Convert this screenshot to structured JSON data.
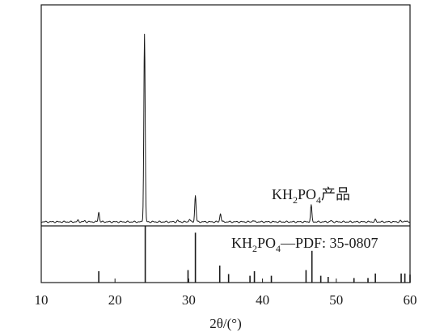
{
  "chart_data": {
    "type": "line",
    "xlabel": "2θ/(°)",
    "ylabel": "",
    "xlim": [
      10,
      60
    ],
    "xticks": [
      10,
      20,
      30,
      40,
      50,
      60
    ],
    "yticks": [],
    "grid": false,
    "panels": [
      {
        "name": "KH2PO4产品",
        "kind": "pattern",
        "label_parts": [
          "KH",
          "2",
          "PO",
          "4",
          "产品"
        ],
        "baseline": 0,
        "peaks": [
          {
            "x": 15.0,
            "y": 0.8
          },
          {
            "x": 15.9,
            "y": 0.5
          },
          {
            "x": 17.8,
            "y": 5.2
          },
          {
            "x": 24.0,
            "y": 100
          },
          {
            "x": 28.5,
            "y": 0.7
          },
          {
            "x": 30.1,
            "y": 1.5
          },
          {
            "x": 30.9,
            "y": 14.0
          },
          {
            "x": 34.3,
            "y": 4.5
          },
          {
            "x": 38.7,
            "y": 0.8
          },
          {
            "x": 46.6,
            "y": 8.8
          },
          {
            "x": 49.3,
            "y": 0.6
          },
          {
            "x": 55.3,
            "y": 1.1
          },
          {
            "x": 58.7,
            "y": 0.5
          },
          {
            "x": 59.3,
            "y": 0.7
          }
        ]
      },
      {
        "name": "KH2PO4—PDF: 35-0807",
        "kind": "reference",
        "label_parts": [
          "KH",
          "2",
          "PO",
          "4",
          "—PDF: 35-0807"
        ],
        "sticks": [
          {
            "x": 17.8,
            "y": 20
          },
          {
            "x": 24.1,
            "y": 100
          },
          {
            "x": 29.9,
            "y": 22
          },
          {
            "x": 30.9,
            "y": 88
          },
          {
            "x": 34.2,
            "y": 30
          },
          {
            "x": 35.4,
            "y": 15
          },
          {
            "x": 38.3,
            "y": 12
          },
          {
            "x": 38.9,
            "y": 20
          },
          {
            "x": 41.2,
            "y": 12
          },
          {
            "x": 45.9,
            "y": 22
          },
          {
            "x": 46.7,
            "y": 56
          },
          {
            "x": 47.9,
            "y": 12
          },
          {
            "x": 48.9,
            "y": 10
          },
          {
            "x": 52.4,
            "y": 8
          },
          {
            "x": 54.3,
            "y": 8
          },
          {
            "x": 55.3,
            "y": 16
          },
          {
            "x": 58.8,
            "y": 16
          },
          {
            "x": 59.3,
            "y": 16
          },
          {
            "x": 60.0,
            "y": 14
          }
        ]
      }
    ]
  }
}
